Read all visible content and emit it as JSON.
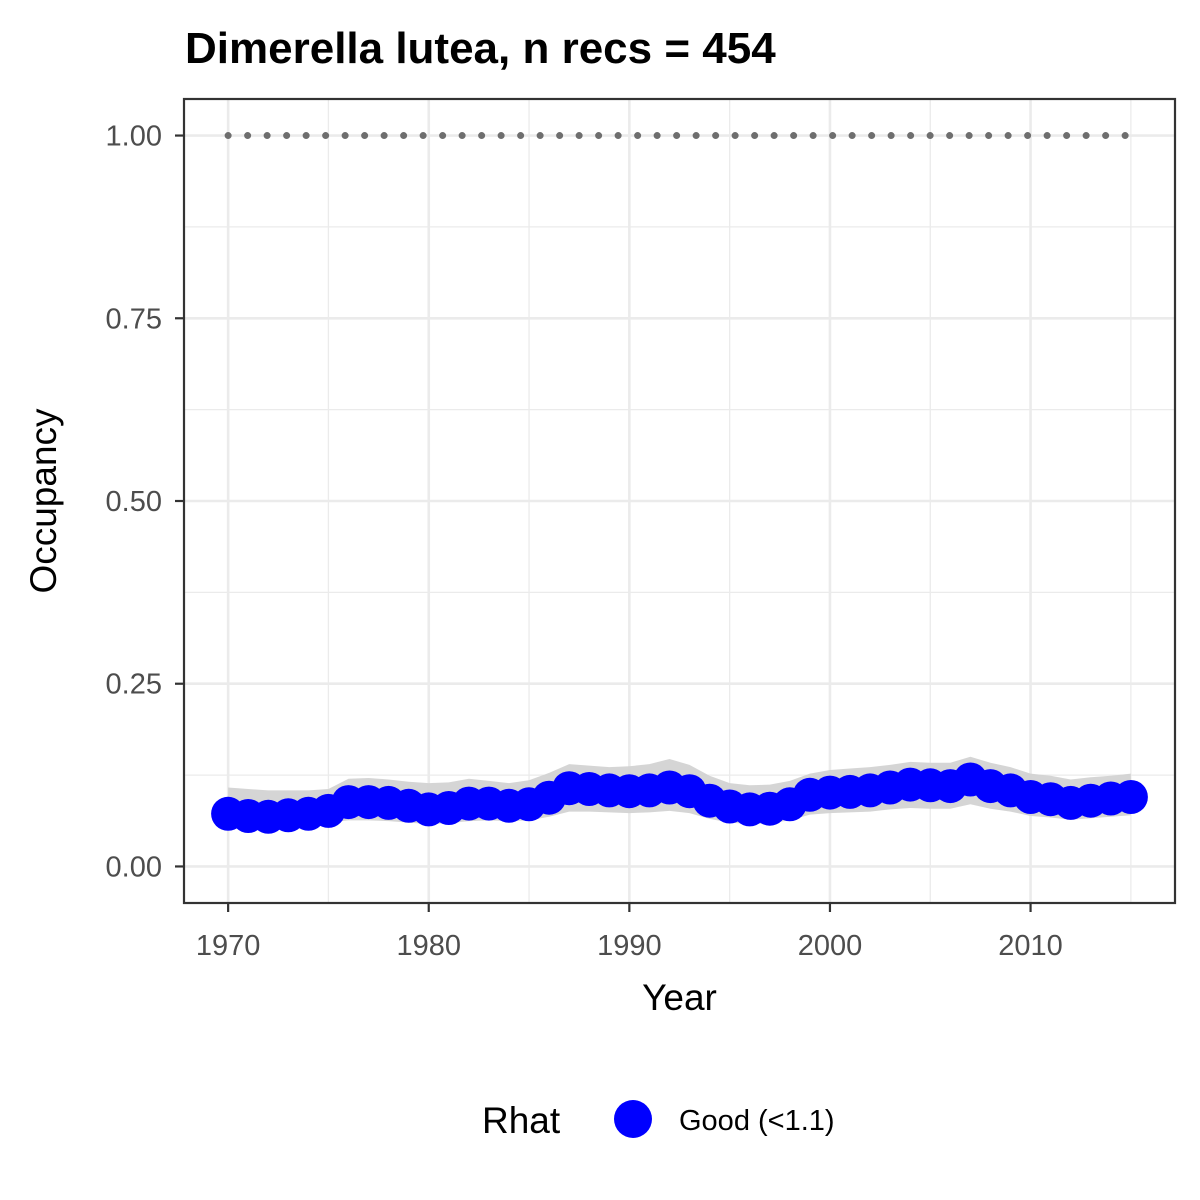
{
  "chart_data": {
    "type": "line",
    "title": "Dimerella lutea, n recs = 454",
    "xlabel": "Year",
    "ylabel": "Occupancy",
    "xlim": [
      1967.8,
      2017.2
    ],
    "ylim": [
      -0.05,
      1.05
    ],
    "x_ticks": [
      "1970",
      "1980",
      "1990",
      "2000",
      "2010"
    ],
    "y_ticks": [
      "0.00",
      "0.25",
      "0.50",
      "0.75",
      "1.00"
    ],
    "grid": true,
    "legend": {
      "title": "Rhat",
      "position": "bottom",
      "entries": [
        {
          "label": "Good (<1.1)",
          "color": "#0000ff"
        }
      ]
    },
    "colors": {
      "points": "#0000ff",
      "ribbon": "#d3d3d3",
      "reference": "#6e6e6e",
      "panel_border": "#333333",
      "grid": "#ebebeb"
    },
    "reference_line": {
      "y": 1.0,
      "style": "dotted"
    },
    "x": [
      1970,
      1971,
      1972,
      1973,
      1974,
      1975,
      1976,
      1977,
      1978,
      1979,
      1980,
      1981,
      1982,
      1983,
      1984,
      1985,
      1986,
      1987,
      1988,
      1989,
      1990,
      1991,
      1992,
      1993,
      1994,
      1995,
      1996,
      1997,
      1998,
      1999,
      2000,
      2001,
      2002,
      2003,
      2004,
      2005,
      2006,
      2007,
      2008,
      2009,
      2010,
      2011,
      2012,
      2013,
      2014,
      2015
    ],
    "series": [
      {
        "name": "Good (<1.1)",
        "values": [
          0.072,
          0.069,
          0.068,
          0.07,
          0.072,
          0.076,
          0.088,
          0.088,
          0.087,
          0.083,
          0.078,
          0.08,
          0.086,
          0.086,
          0.083,
          0.085,
          0.094,
          0.107,
          0.106,
          0.104,
          0.103,
          0.104,
          0.108,
          0.103,
          0.09,
          0.082,
          0.078,
          0.079,
          0.085,
          0.098,
          0.101,
          0.102,
          0.104,
          0.108,
          0.112,
          0.111,
          0.11,
          0.119,
          0.11,
          0.104,
          0.095,
          0.092,
          0.087,
          0.09,
          0.093,
          0.095
        ]
      }
    ],
    "ribbon_upper": [
      0.108,
      0.106,
      0.104,
      0.104,
      0.104,
      0.106,
      0.12,
      0.121,
      0.119,
      0.116,
      0.114,
      0.115,
      0.12,
      0.117,
      0.114,
      0.118,
      0.128,
      0.14,
      0.138,
      0.136,
      0.137,
      0.14,
      0.147,
      0.139,
      0.124,
      0.114,
      0.111,
      0.112,
      0.117,
      0.127,
      0.132,
      0.134,
      0.136,
      0.139,
      0.143,
      0.142,
      0.142,
      0.15,
      0.142,
      0.136,
      0.127,
      0.124,
      0.119,
      0.122,
      0.124,
      0.127
    ],
    "ribbon_lower": [
      0.059,
      0.058,
      0.058,
      0.058,
      0.058,
      0.06,
      0.063,
      0.063,
      0.062,
      0.06,
      0.058,
      0.059,
      0.062,
      0.063,
      0.062,
      0.063,
      0.068,
      0.075,
      0.075,
      0.074,
      0.073,
      0.074,
      0.076,
      0.073,
      0.065,
      0.06,
      0.058,
      0.059,
      0.063,
      0.071,
      0.073,
      0.074,
      0.075,
      0.078,
      0.08,
      0.079,
      0.079,
      0.085,
      0.079,
      0.075,
      0.069,
      0.067,
      0.064,
      0.066,
      0.068,
      0.07
    ]
  }
}
